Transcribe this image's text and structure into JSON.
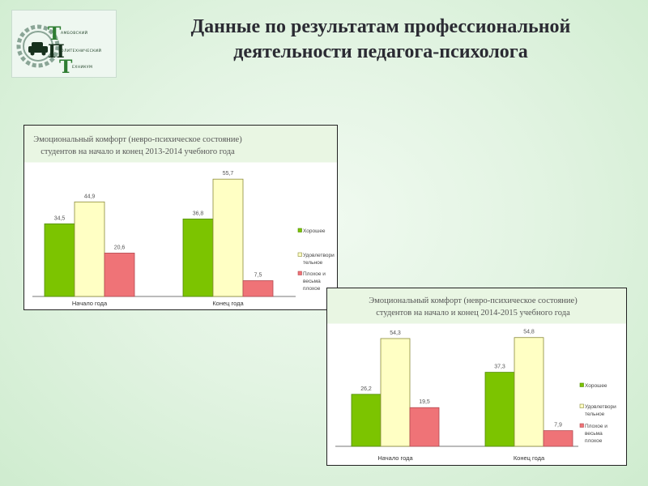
{
  "slide": {
    "title_lines": [
      "Данные по результатам профессиональной",
      "деятельности педагога-психолога"
    ]
  },
  "logo": {
    "letters": [
      "Т",
      "П",
      "Т"
    ],
    "lines": [
      "АМБОВСКИЙ",
      "ОЛИТЕХНИЧЕСКИЙ",
      "ЕХНИКУМ"
    ],
    "colors": {
      "green": "#2e7d32",
      "dark": "#16301c"
    }
  },
  "colors": {
    "good": "#7cc400",
    "good_edge": "#4f8a00",
    "satisfactory": "#ffffc4",
    "satisfactory_edge": "#8a8a3a",
    "bad": "#ef7377",
    "bad_edge": "#b34a50"
  },
  "chart_data": [
    {
      "type": "bar",
      "title": "Эмоциональный комфорт (невро-психическое состояние) студентов на начало и конец 2013-2014 учебного года",
      "title_lines": [
        "Эмоциональный комфорт (невро-психическое состояние)",
        "студентов на начало и конец 2013-2014 учебного года"
      ],
      "categories": [
        "Начало года",
        "Конец года"
      ],
      "series": [
        {
          "name": "Хорошее",
          "legend_lines": [
            "Хорошее"
          ],
          "values": [
            34.5,
            36.8
          ],
          "labels": [
            "34,5",
            "36,8"
          ]
        },
        {
          "name": "Удовлетворительное",
          "legend_lines": [
            "Удовлетвори",
            "тельное"
          ],
          "values": [
            44.9,
            55.7
          ],
          "labels": [
            "44,9",
            "55,7"
          ]
        },
        {
          "name": "Плохое и весьма плохое",
          "legend_lines": [
            "Плохое и",
            "весьма",
            "плохое"
          ],
          "values": [
            20.6,
            7.5
          ],
          "labels": [
            "20,6",
            "7,5"
          ]
        }
      ],
      "ylim": [
        0,
        60
      ],
      "grid": false,
      "legend": "right"
    },
    {
      "type": "bar",
      "title": "Эмоциональный комфорт (невро-психическое состояние) студентов на начало и конец 2014-2015 учебного года",
      "title_lines": [
        "Эмоциональный комфорт (невро-психическое состояние)",
        "студентов на начало и конец 2014-2015 учебного года"
      ],
      "categories": [
        "Начало года",
        "Конец года"
      ],
      "series": [
        {
          "name": "Хорошее",
          "legend_lines": [
            "Хорошее"
          ],
          "values": [
            26.2,
            37.3
          ],
          "labels": [
            "26,2",
            "37,3"
          ]
        },
        {
          "name": "Удовлетворительное",
          "legend_lines": [
            "Удовлетвори",
            "тельное"
          ],
          "values": [
            54.3,
            54.8
          ],
          "labels": [
            "54,3",
            "54,8"
          ]
        },
        {
          "name": "Плохое и весьма плохое",
          "legend_lines": [
            "Плохое и",
            "весьма",
            "плохое"
          ],
          "values": [
            19.5,
            7.9
          ],
          "labels": [
            "19,5",
            "7,9"
          ]
        }
      ],
      "ylim": [
        0,
        60
      ],
      "grid": false,
      "legend": "right"
    }
  ]
}
